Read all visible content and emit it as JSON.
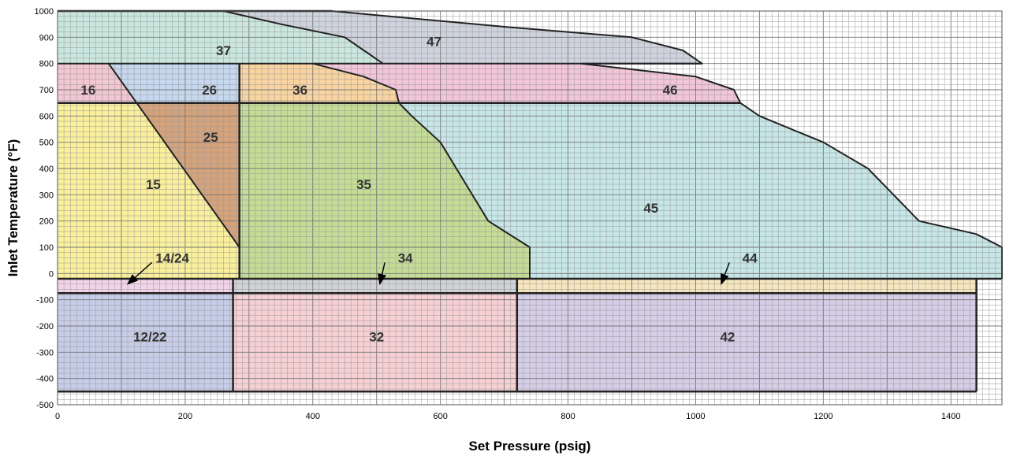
{
  "chart_data": {
    "type": "area",
    "title": "",
    "xlabel": "Set Pressure (psig)",
    "ylabel": "Inlet Temperature (°F)",
    "xlim": [
      0,
      1480
    ],
    "ylim": [
      -500,
      1000
    ],
    "x_ticks": [
      0,
      200,
      400,
      600,
      800,
      1000,
      1200,
      1400
    ],
    "y_ticks": [
      1000,
      900,
      800,
      700,
      600,
      500,
      400,
      300,
      200,
      100,
      0,
      -100,
      -200,
      -300,
      -400,
      -500
    ],
    "grid": true,
    "regions": [
      {
        "label": "47",
        "color": "#cfd3de",
        "label_at": [
          590,
          885
        ],
        "points": [
          [
            430,
            1000
          ],
          [
            520,
            980
          ],
          [
            700,
            940
          ],
          [
            900,
            900
          ],
          [
            980,
            850
          ],
          [
            1010,
            800
          ],
          [
            510,
            800
          ],
          [
            480,
            850
          ],
          [
            450,
            900
          ],
          [
            350,
            950
          ],
          [
            260,
            1000
          ]
        ]
      },
      {
        "label": "37",
        "color": "#c9e7de",
        "label_at": [
          260,
          850
        ],
        "points": [
          [
            0,
            1000
          ],
          [
            260,
            1000
          ],
          [
            350,
            950
          ],
          [
            450,
            900
          ],
          [
            480,
            850
          ],
          [
            510,
            800
          ],
          [
            0,
            800
          ]
        ]
      },
      {
        "label": "16",
        "color": "#f2c6d2",
        "label_at": [
          48,
          700
        ],
        "points": [
          [
            0,
            800
          ],
          [
            80,
            800
          ],
          [
            125,
            650
          ],
          [
            0,
            650
          ]
        ]
      },
      {
        "label": "26",
        "color": "#c6d8ef",
        "label_at": [
          238,
          700
        ],
        "points": [
          [
            80,
            800
          ],
          [
            285,
            800
          ],
          [
            285,
            650
          ],
          [
            125,
            650
          ]
        ]
      },
      {
        "label": "36",
        "color": "#f9d4a0",
        "label_at": [
          380,
          700
        ],
        "points": [
          [
            285,
            800
          ],
          [
            400,
            800
          ],
          [
            480,
            750
          ],
          [
            530,
            700
          ],
          [
            535,
            650
          ],
          [
            285,
            650
          ]
        ]
      },
      {
        "label": "46",
        "color": "#f2c6d8",
        "label_at": [
          960,
          700
        ],
        "points": [
          [
            400,
            800
          ],
          [
            1010,
            800
          ],
          [
            820,
            800
          ],
          [
            1000,
            750
          ],
          [
            1060,
            700
          ],
          [
            1070,
            650
          ],
          [
            535,
            650
          ],
          [
            530,
            700
          ],
          [
            480,
            750
          ]
        ]
      },
      {
        "label": "15",
        "color": "#faf09c",
        "label_at": [
          150,
          340
        ],
        "points": [
          [
            0,
            650
          ],
          [
            125,
            650
          ],
          [
            285,
            100
          ],
          [
            285,
            -20
          ],
          [
            0,
            -20
          ]
        ]
      },
      {
        "label": "25",
        "color": "#d4a27b",
        "label_at": [
          240,
          520
        ],
        "points": [
          [
            125,
            650
          ],
          [
            285,
            650
          ],
          [
            285,
            100
          ]
        ]
      },
      {
        "label": "35",
        "color": "#c4dc95",
        "label_at": [
          480,
          340
        ],
        "points": [
          [
            285,
            650
          ],
          [
            535,
            650
          ],
          [
            555,
            600
          ],
          [
            600,
            500
          ],
          [
            625,
            400
          ],
          [
            675,
            200
          ],
          [
            740,
            100
          ],
          [
            740,
            -20
          ],
          [
            285,
            -20
          ]
        ]
      },
      {
        "label": "45",
        "color": "#c6e6e7",
        "label_at": [
          930,
          250
        ],
        "points": [
          [
            535,
            650
          ],
          [
            1070,
            650
          ],
          [
            1100,
            600
          ],
          [
            1200,
            500
          ],
          [
            1270,
            400
          ],
          [
            1310,
            300
          ],
          [
            1350,
            200
          ],
          [
            1440,
            150
          ],
          [
            1480,
            100
          ],
          [
            1480,
            -20
          ],
          [
            740,
            -20
          ],
          [
            740,
            100
          ],
          [
            675,
            200
          ],
          [
            625,
            400
          ],
          [
            600,
            500
          ],
          [
            555,
            600
          ]
        ]
      },
      {
        "label": "14/24",
        "color": "#f2d3ea",
        "label_at": null,
        "points": [
          [
            0,
            -20
          ],
          [
            275,
            -20
          ],
          [
            275,
            -75
          ],
          [
            0,
            -75
          ]
        ]
      },
      {
        "label": "34",
        "color": "#d0d2d6",
        "label_at": null,
        "points": [
          [
            275,
            -20
          ],
          [
            720,
            -20
          ],
          [
            720,
            -75
          ],
          [
            275,
            -75
          ]
        ]
      },
      {
        "label": "44",
        "color": "#f6e6bd",
        "label_at": null,
        "points": [
          [
            720,
            -20
          ],
          [
            1440,
            -20
          ],
          [
            1440,
            -75
          ],
          [
            720,
            -75
          ]
        ]
      },
      {
        "label": "12/22",
        "color": "#c6cde8",
        "label_at": [
          145,
          -240
        ],
        "points": [
          [
            0,
            -75
          ],
          [
            275,
            -75
          ],
          [
            275,
            -450
          ],
          [
            0,
            -450
          ]
        ]
      },
      {
        "label": "32",
        "color": "#f7d0d3",
        "label_at": [
          500,
          -240
        ],
        "points": [
          [
            275,
            -75
          ],
          [
            720,
            -75
          ],
          [
            720,
            -450
          ],
          [
            275,
            -450
          ]
        ]
      },
      {
        "label": "42",
        "color": "#d6cde7",
        "label_at": [
          1050,
          -240
        ],
        "points": [
          [
            720,
            -75
          ],
          [
            1440,
            -75
          ],
          [
            1440,
            -450
          ],
          [
            720,
            -450
          ]
        ]
      }
    ],
    "annotations": [
      {
        "label": "14/24",
        "text_at": [
          180,
          60
        ],
        "arrow_to": [
          110,
          -40
        ]
      },
      {
        "label": "34",
        "text_at": [
          545,
          60
        ],
        "arrow_to": [
          505,
          -40
        ]
      },
      {
        "label": "44",
        "text_at": [
          1085,
          60
        ],
        "arrow_to": [
          1040,
          -40
        ]
      }
    ]
  }
}
